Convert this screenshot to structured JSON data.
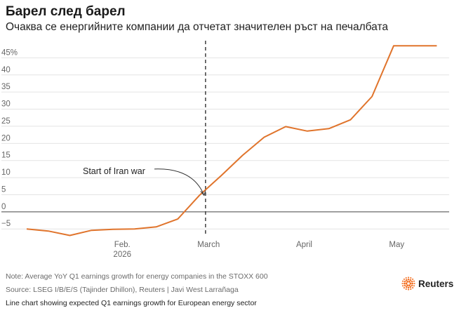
{
  "header": {
    "title": "Барел след барел",
    "subtitle": "Очаква се енергийните компании да отчетат значителен ръст на печалбата"
  },
  "chart_data": {
    "type": "line",
    "title": "Барел след барел",
    "subtitle": "Очаква се енергийните компании да отчетат значителен ръст на печалбата",
    "ylim": [
      -7,
      50
    ],
    "xlim": [
      "2026-01-01",
      "2026-05-18"
    ],
    "y_ticks": [
      -5,
      0,
      5,
      10,
      15,
      20,
      25,
      30,
      35,
      40,
      45
    ],
    "y_tick_labels": [
      "−5",
      "0",
      "5",
      "10",
      "15",
      "20",
      "25",
      "30",
      "35",
      "40",
      "45%"
    ],
    "x_ticks": [
      {
        "date": "2026-02-01",
        "label": "Feb.",
        "sublabel": "2026"
      },
      {
        "date": "2026-03-01",
        "label": "March",
        "sublabel": ""
      },
      {
        "date": "2026-04-01",
        "label": "April",
        "sublabel": ""
      },
      {
        "date": "2026-05-01",
        "label": "May",
        "sublabel": ""
      }
    ],
    "grid": true,
    "colors": {
      "line": "#e0742c",
      "grid": "#e4e4e4",
      "zero": "#444444",
      "event": "#555555"
    },
    "series": [
      {
        "x": [
          "2026-01-01",
          "2026-01-08",
          "2026-01-15",
          "2026-01-22",
          "2026-01-29",
          "2026-02-05",
          "2026-02-12",
          "2026-02-19",
          "2026-02-26",
          "2026-03-05",
          "2026-03-12",
          "2026-03-19",
          "2026-03-26",
          "2026-04-02",
          "2026-04-09",
          "2026-04-16",
          "2026-04-23",
          "2026-04-30",
          "2026-05-07",
          "2026-05-14"
        ],
        "y": [
          -5.0,
          -5.6,
          -6.9,
          -5.4,
          -5.1,
          -5.0,
          -4.4,
          -2.1,
          4.8,
          10.5,
          16.5,
          21.8,
          24.9,
          23.6,
          24.3,
          26.9,
          33.7,
          48.5,
          48.5,
          48.5
        ]
      }
    ],
    "event": {
      "date": "2026-02-28",
      "label": "Start of Iran war"
    }
  },
  "notes": {
    "note": "Note: Average YoY Q1 earnings growth for energy companies in the STOXX 600",
    "source": "Source: LSEG I/B/E/S (Tajinder Dhillon), Reuters | Javi West Larrañaga",
    "alt_text": "Line chart showing expected Q1 earnings growth for European energy sector"
  },
  "brand": {
    "name": "Reuters",
    "icon": "reuters-logo-icon",
    "color": "#f36f21"
  }
}
